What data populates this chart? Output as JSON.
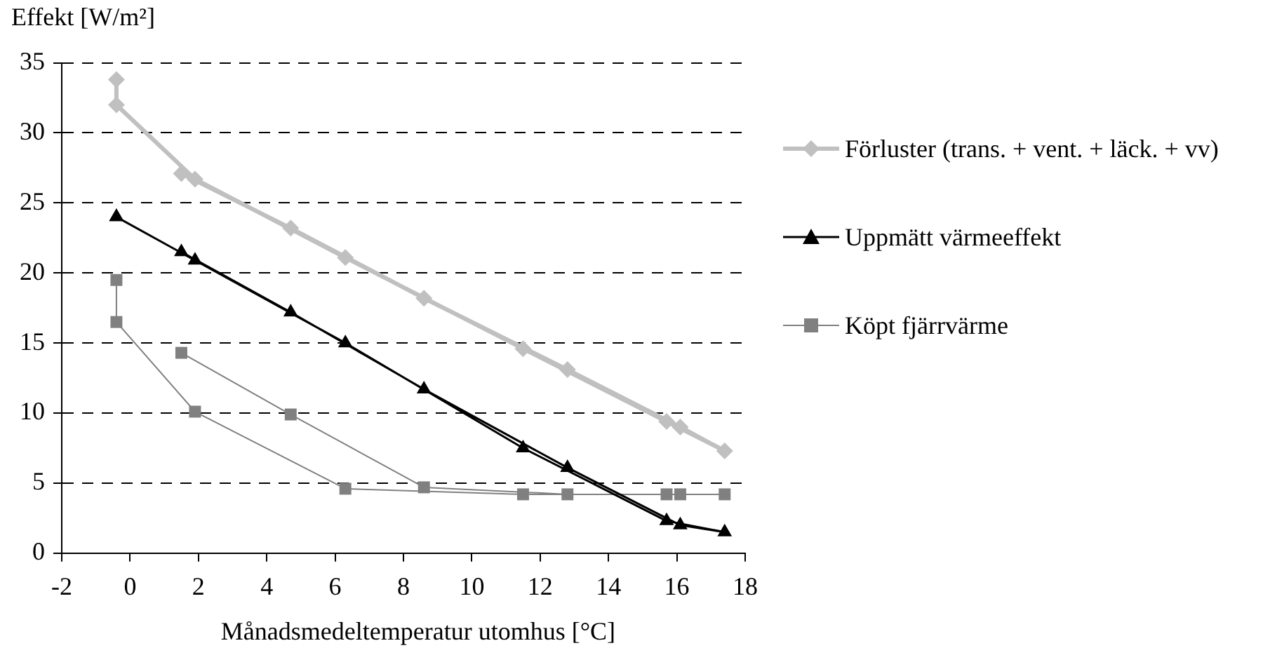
{
  "chart_data": {
    "type": "line",
    "ylabel": "Effekt [W/m²]",
    "xlabel": "Månadsmedeltemperatur utomhus [°C]",
    "xlim": [
      -2,
      18
    ],
    "xticks": [
      -2,
      0,
      2,
      4,
      6,
      8,
      10,
      12,
      14,
      16,
      18
    ],
    "ylim": [
      0,
      35
    ],
    "yticks": [
      0,
      5,
      10,
      15,
      20,
      25,
      30,
      35
    ],
    "grid": "y",
    "legend": "right",
    "line_style": "solid",
    "series": [
      {
        "name": "Förluster (trans. + vent. + läck. + vv)",
        "color": "#c0c0c0",
        "marker": "diamond",
        "x": [
          -0.4,
          -0.4,
          1.9,
          6.3,
          11.5,
          15.7,
          17.4,
          16.1,
          12.8,
          8.6,
          4.7,
          1.5
        ],
        "values": [
          33.8,
          32,
          26.7,
          21.1,
          14.6,
          9.4,
          7.3,
          9.0,
          13.1,
          18.2,
          23.2,
          27.1
        ]
      },
      {
        "name": "Uppmätt värmeeffekt",
        "color": "#000000",
        "marker": "triangle",
        "x": [
          -0.4,
          -0.4,
          1.9,
          6.3,
          11.5,
          15.7,
          17.4,
          16.1,
          12.8,
          8.6,
          4.7,
          1.5
        ],
        "values": [
          24,
          24,
          20.9,
          15,
          7.5,
          2.3,
          1.5,
          2.0,
          6.1,
          11.7,
          17.2,
          21.5
        ]
      },
      {
        "name": "Köpt fjärrvärme",
        "color": "#808080",
        "marker": "square",
        "x": [
          -0.4,
          -0.4,
          1.9,
          6.3,
          11.5,
          15.7,
          17.4,
          16.1,
          12.8,
          8.6,
          4.7,
          1.5
        ],
        "values": [
          19.5,
          16.5,
          10.1,
          4.6,
          4.2,
          4.2,
          4.2,
          4.2,
          4.2,
          4.7,
          9.9,
          14.3
        ]
      }
    ]
  }
}
